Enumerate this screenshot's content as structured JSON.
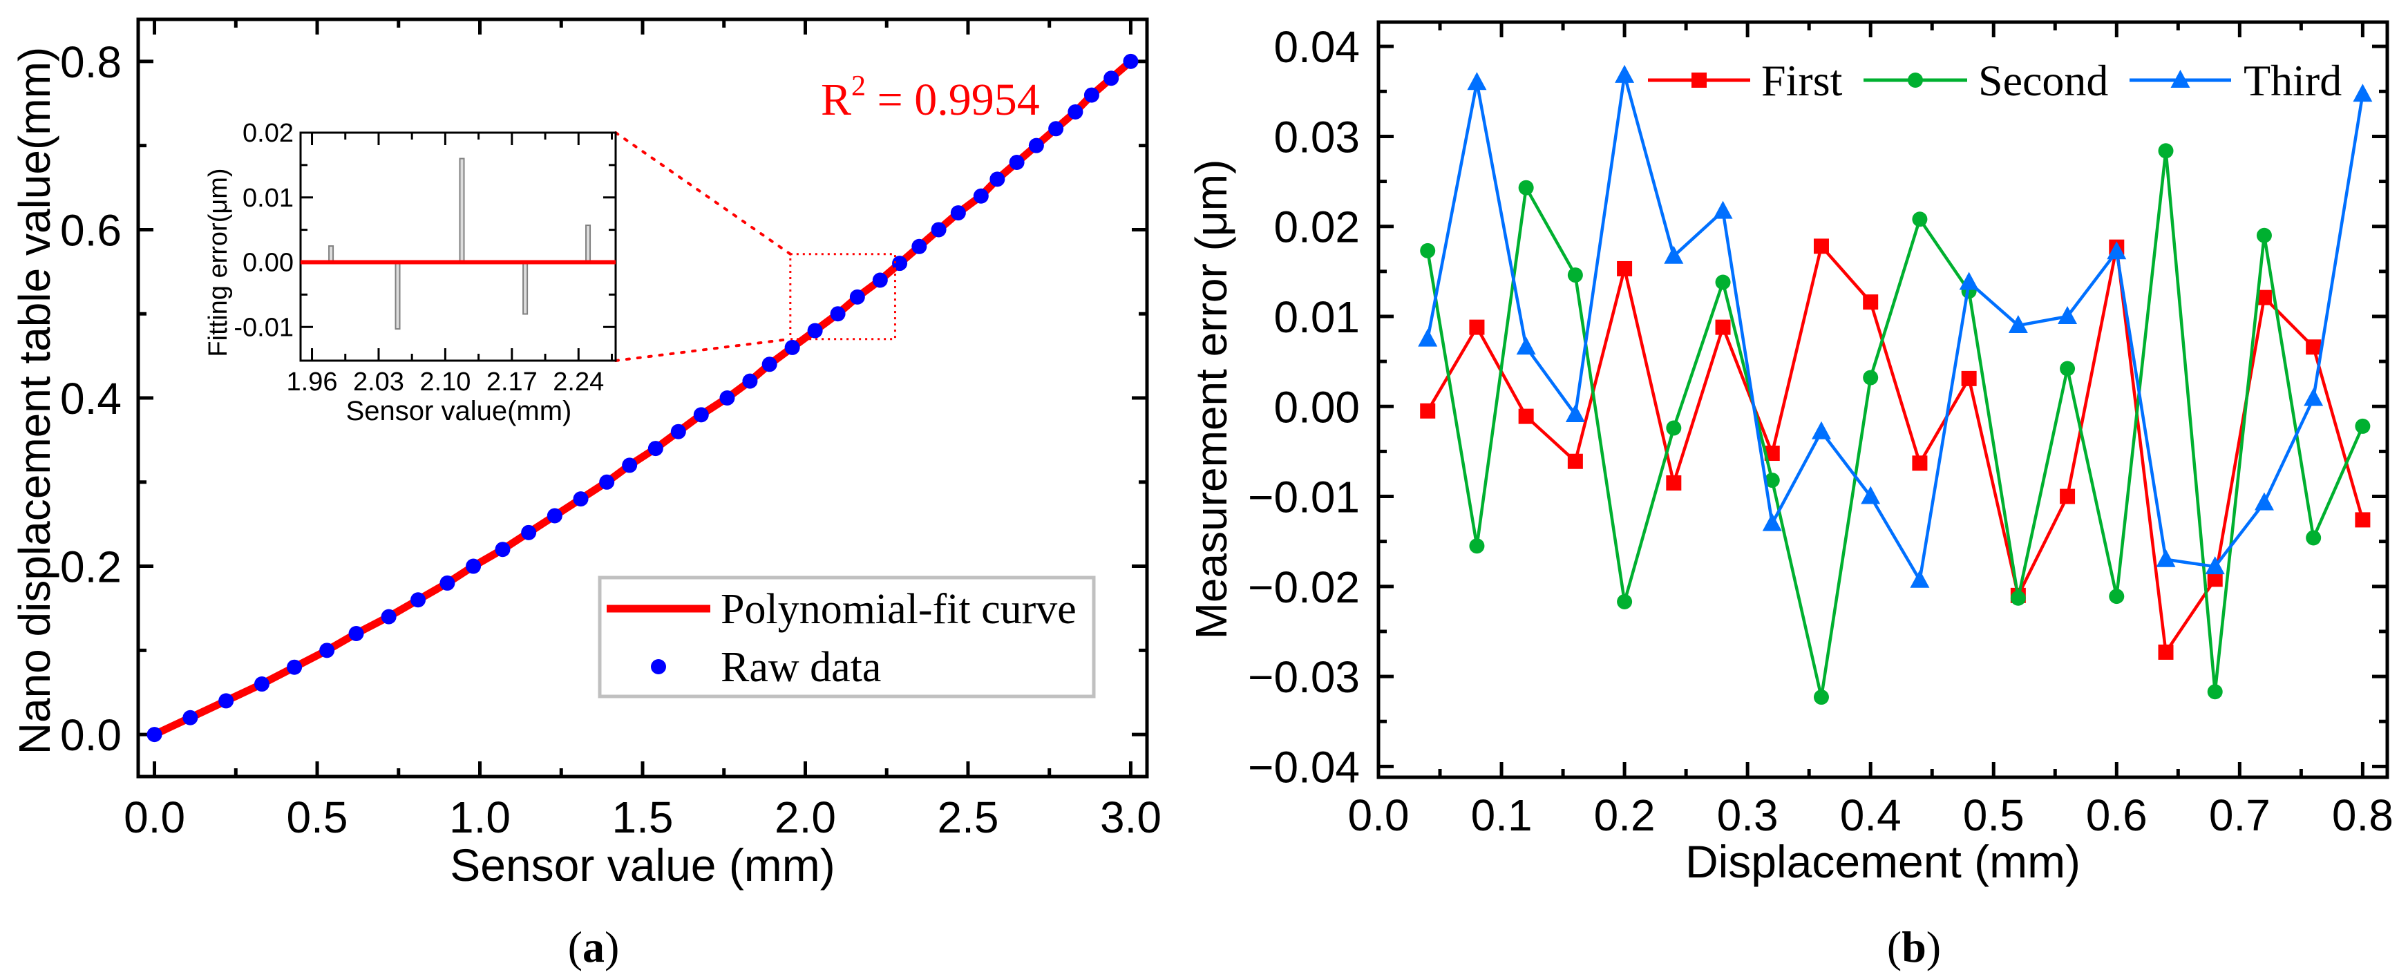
{
  "colors": {
    "fit": "#ff0000",
    "raw": "#0000ff",
    "first": "#ff0000",
    "second": "#00b030",
    "third": "#0070ff",
    "inset_bar": "#808080",
    "legend_border": "#c0c0c0"
  },
  "panel_labels": {
    "a": "a",
    "b": "b"
  },
  "chart_data": [
    {
      "type": "scatter",
      "title": "",
      "xlabel": "Sensor value (mm)",
      "ylabel": "Nano displacement table value(mm)",
      "xlim": [
        -0.05,
        3.05
      ],
      "ylim": [
        -0.05,
        0.85
      ],
      "xticks": [
        "0.0",
        "0.5",
        "1.0",
        "1.5",
        "2.0",
        "2.5",
        "3.0"
      ],
      "yticks": [
        "0.0",
        "0.2",
        "0.4",
        "0.6",
        "0.8"
      ],
      "annotation": {
        "prefix": "R",
        "sup": "2",
        "text": " = 0.9954"
      },
      "legend": {
        "position": "bottom-right",
        "entries": [
          "Polynomial-fit curve",
          "Raw data"
        ]
      },
      "series": [
        {
          "name": "Raw data",
          "x": [
            0,
            0.11,
            0.22,
            0.33,
            0.43,
            0.53,
            0.62,
            0.72,
            0.81,
            0.9,
            0.98,
            1.07,
            1.15,
            1.23,
            1.31,
            1.39,
            1.46,
            1.54,
            1.61,
            1.68,
            1.76,
            1.83,
            1.89,
            1.96,
            2.03,
            2.1,
            2.16,
            2.23,
            2.29,
            2.35,
            2.41,
            2.47,
            2.54,
            2.59,
            2.65,
            2.71,
            2.77,
            2.83,
            2.88,
            2.94,
            3.0
          ],
          "y": [
            0,
            0.02,
            0.04,
            0.06,
            0.08,
            0.1,
            0.12,
            0.14,
            0.16,
            0.18,
            0.2,
            0.22,
            0.24,
            0.26,
            0.28,
            0.3,
            0.32,
            0.34,
            0.36,
            0.38,
            0.4,
            0.42,
            0.44,
            0.46,
            0.48,
            0.5,
            0.52,
            0.54,
            0.56,
            0.58,
            0.6,
            0.62,
            0.64,
            0.66,
            0.68,
            0.7,
            0.72,
            0.74,
            0.76,
            0.78,
            0.8
          ]
        }
      ],
      "zoom_region": {
        "x": [
          1.954,
          2.276
        ],
        "y": [
          0.47,
          0.571
        ]
      },
      "inset": {
        "type": "bar",
        "xlabel": "Sensor value(mm)",
        "ylabel": "Fitting error(μm)",
        "xlim": [
          1.948,
          2.279
        ],
        "ylim": [
          -0.0152,
          0.02
        ],
        "xticks": [
          "1.96",
          "2.03",
          "2.10",
          "2.17",
          "2.24"
        ],
        "yticks": [
          "-0.01",
          "0.00",
          "0.01",
          "0.02"
        ],
        "x": [
          1.98,
          2.05,
          2.1175,
          2.184,
          2.25
        ],
        "values": [
          0.0025,
          -0.0103,
          0.016,
          -0.008,
          0.0057
        ]
      }
    },
    {
      "type": "line",
      "title": "",
      "xlabel": "Displacement (mm)",
      "ylabel": "Measurement error (μm)",
      "xlim": [
        0,
        0.82
      ],
      "ylim": [
        -0.04,
        0.04
      ],
      "xticks": [
        "0.0",
        "0.1",
        "0.2",
        "0.3",
        "0.4",
        "0.5",
        "0.6",
        "0.7",
        "0.8"
      ],
      "yticks": [
        "−0.04",
        "−0.03",
        "−0.02",
        "−0.01",
        "0.00",
        "0.01",
        "0.02",
        "0.03",
        "0.04"
      ],
      "legend": {
        "position": "top",
        "entries": [
          "First",
          "Second",
          "Third"
        ]
      },
      "x": [
        0.04,
        0.08,
        0.12,
        0.16,
        0.2,
        0.24,
        0.28,
        0.32,
        0.36,
        0.4,
        0.44,
        0.48,
        0.52,
        0.56,
        0.6,
        0.64,
        0.68,
        0.72,
        0.76,
        0.8
      ],
      "series": [
        {
          "name": "First",
          "marker": "square",
          "values": [
            -0.0005,
            0.0088,
            -0.0011,
            -0.0061,
            0.0153,
            -0.0085,
            0.0088,
            -0.0052,
            0.0178,
            0.0116,
            -0.0063,
            0.0031,
            -0.021,
            -0.01,
            0.0177,
            -0.0273,
            -0.0192,
            0.0121,
            0.0066,
            -0.0126
          ]
        },
        {
          "name": "Second",
          "marker": "circle",
          "values": [
            0.0173,
            -0.0155,
            0.0243,
            0.0146,
            -0.0217,
            -0.0024,
            0.0138,
            -0.0082,
            -0.0323,
            0.0032,
            0.0208,
            0.0128,
            -0.0213,
            0.0042,
            -0.0211,
            0.0284,
            -0.0317,
            0.019,
            -0.0146,
            -0.0022
          ]
        },
        {
          "name": "Third",
          "marker": "triangle",
          "values": [
            0.0075,
            0.036,
            0.0066,
            -0.0009,
            0.0368,
            0.0167,
            0.0217,
            -0.013,
            -0.0028,
            -0.01,
            -0.0193,
            0.0138,
            0.009,
            0.01,
            0.0172,
            -0.017,
            -0.0178,
            -0.0107,
            0.0009,
            0.0347
          ]
        }
      ]
    }
  ]
}
